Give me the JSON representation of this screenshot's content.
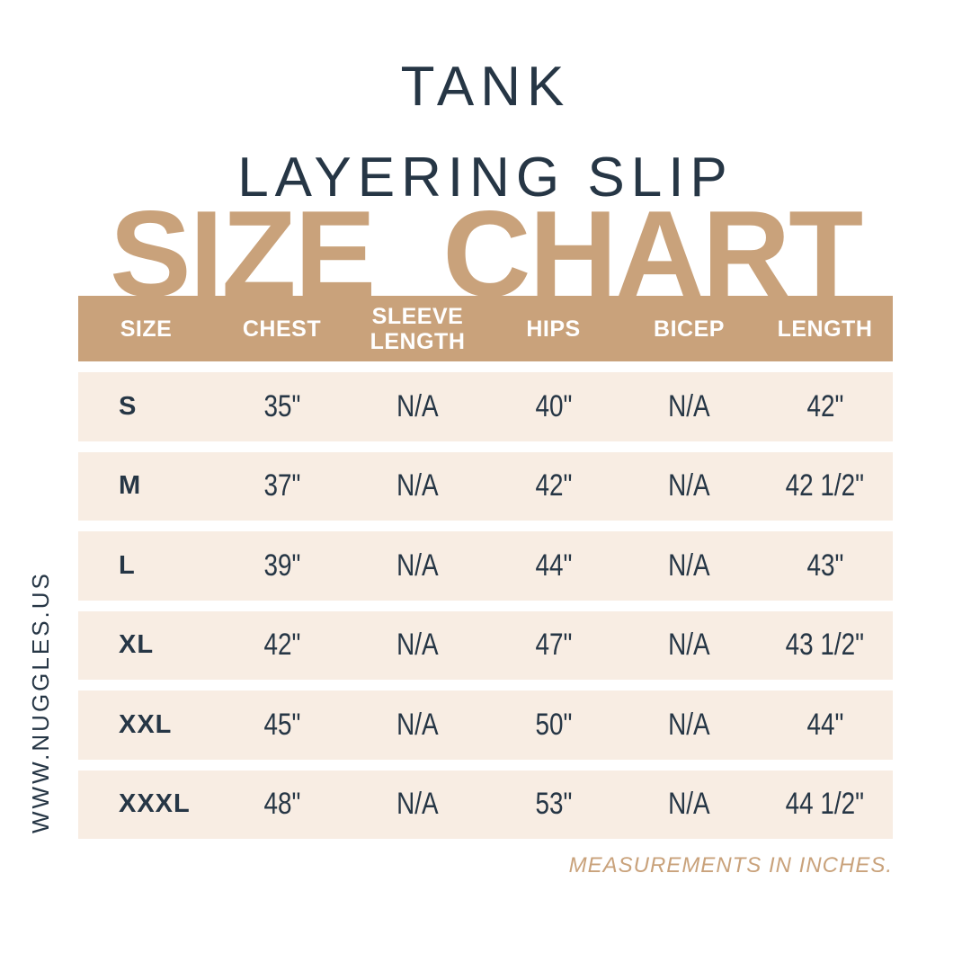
{
  "colors": {
    "tan": "#c9a27b",
    "cream": "#f8ede3",
    "navy": "#263645",
    "white": "#ffffff"
  },
  "header": {
    "product_line1": "TANK",
    "product_line2": "LAYERING SLIP"
  },
  "big_title": {
    "word1": "SIZE",
    "word2": "CHART"
  },
  "sidebar": {
    "website": "WWW.NUGGLES.US"
  },
  "chart_data": {
    "type": "table",
    "title": "SIZE CHART",
    "columns": [
      "SIZE",
      "CHEST",
      "SLEEVE LENGTH",
      "HIPS",
      "BICEP",
      "LENGTH"
    ],
    "rows": [
      [
        "S",
        "35\"",
        "N/A",
        "40\"",
        "N/A",
        "42\""
      ],
      [
        "M",
        "37\"",
        "N/A",
        "42\"",
        "N/A",
        "42 1/2\""
      ],
      [
        "L",
        "39\"",
        "N/A",
        "44\"",
        "N/A",
        "43\""
      ],
      [
        "XL",
        "42\"",
        "N/A",
        "47\"",
        "N/A",
        "43 1/2\""
      ],
      [
        "XXL",
        "45\"",
        "N/A",
        "50\"",
        "N/A",
        "44\""
      ],
      [
        "XXXL",
        "48\"",
        "N/A",
        "53\"",
        "N/A",
        "44 1/2\""
      ]
    ],
    "footnote": "MEASUREMENTS IN INCHES."
  }
}
